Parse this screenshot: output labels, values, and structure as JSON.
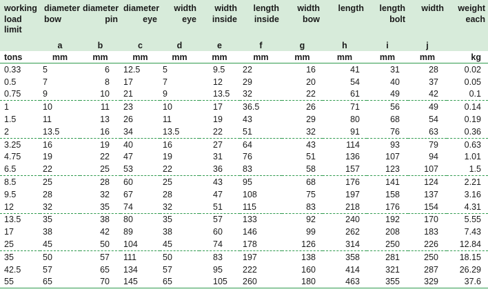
{
  "table": {
    "headers": [
      "working\nload\nlimit",
      "diameter\nbow",
      "diameter\npin",
      "diameter\neye",
      "width\neye",
      "width\ninside",
      "length\ninside",
      "width\nbow",
      "length",
      "length\nbolt",
      "width",
      "weight\neach"
    ],
    "letters": [
      "",
      "a",
      "b",
      "c",
      "d",
      "e",
      "f",
      "g",
      "h",
      "i",
      "j",
      ""
    ],
    "units": [
      "tons",
      "mm",
      "mm",
      "mm",
      "mm",
      "mm",
      "mm",
      "mm",
      "mm",
      "mm",
      "mm",
      "kg"
    ],
    "groups": [
      [
        [
          "0.33",
          "5",
          "6",
          "12.5",
          "5",
          "9.5",
          "22",
          "16",
          "41",
          "31",
          "28",
          "0.02"
        ],
        [
          "0.5",
          "7",
          "8",
          "17",
          "7",
          "12",
          "29",
          "20",
          "54",
          "40",
          "37",
          "0.05"
        ],
        [
          "0.75",
          "9",
          "10",
          "21",
          "9",
          "13.5",
          "32",
          "22",
          "61",
          "49",
          "42",
          "0.1"
        ]
      ],
      [
        [
          "1",
          "10",
          "11",
          "23",
          "10",
          "17",
          "36.5",
          "26",
          "71",
          "56",
          "49",
          "0.14"
        ],
        [
          "1.5",
          "11",
          "13",
          "26",
          "11",
          "19",
          "43",
          "29",
          "80",
          "68",
          "54",
          "0.19"
        ],
        [
          "2",
          "13.5",
          "16",
          "34",
          "13.5",
          "22",
          "51",
          "32",
          "91",
          "76",
          "63",
          "0.36"
        ]
      ],
      [
        [
          "3.25",
          "16",
          "19",
          "40",
          "16",
          "27",
          "64",
          "43",
          "114",
          "93",
          "79",
          "0.63"
        ],
        [
          "4.75",
          "19",
          "22",
          "47",
          "19",
          "31",
          "76",
          "51",
          "136",
          "107",
          "94",
          "1.01"
        ],
        [
          "6.5",
          "22",
          "25",
          "53",
          "22",
          "36",
          "83",
          "58",
          "157",
          "123",
          "107",
          "1.5"
        ]
      ],
      [
        [
          "8.5",
          "25",
          "28",
          "60",
          "25",
          "43",
          "95",
          "68",
          "176",
          "141",
          "124",
          "2.21"
        ],
        [
          "9.5",
          "28",
          "32",
          "67",
          "28",
          "47",
          "108",
          "75",
          "197",
          "158",
          "137",
          "3.16"
        ],
        [
          "12",
          "32",
          "35",
          "74",
          "32",
          "51",
          "115",
          "83",
          "218",
          "176",
          "154",
          "4.31"
        ]
      ],
      [
        [
          "13.5",
          "35",
          "38",
          "80",
          "35",
          "57",
          "133",
          "92",
          "240",
          "192",
          "170",
          "5.55"
        ],
        [
          "17",
          "38",
          "42",
          "89",
          "38",
          "60",
          "146",
          "99",
          "262",
          "208",
          "183",
          "7.43"
        ],
        [
          "25",
          "45",
          "50",
          "104",
          "45",
          "74",
          "178",
          "126",
          "314",
          "250",
          "226",
          "12.84"
        ]
      ],
      [
        [
          "35",
          "50",
          "57",
          "111",
          "50",
          "83",
          "197",
          "138",
          "358",
          "281",
          "250",
          "18.15"
        ],
        [
          "42.5",
          "57",
          "65",
          "134",
          "57",
          "95",
          "222",
          "160",
          "414",
          "321",
          "287",
          "26.29"
        ],
        [
          "55",
          "65",
          "70",
          "145",
          "65",
          "105",
          "260",
          "180",
          "463",
          "355",
          "329",
          "37.6"
        ]
      ]
    ]
  }
}
